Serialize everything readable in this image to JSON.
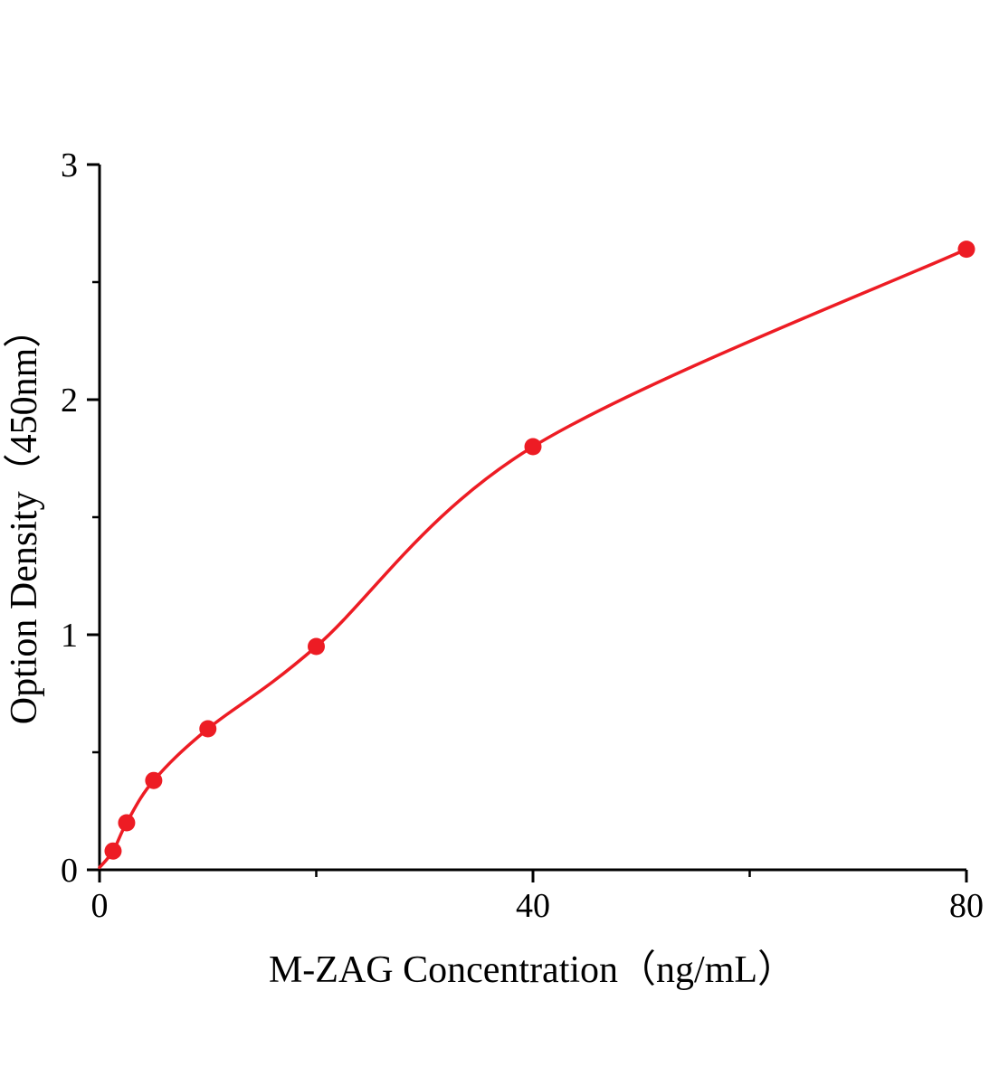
{
  "chart_data": {
    "type": "scatter",
    "title": "",
    "xlabel": "M-ZAG Concentration（ng/mL）",
    "ylabel": "Option Density（450nm）",
    "x": [
      1.25,
      2.5,
      5,
      10,
      20,
      40,
      80
    ],
    "y": [
      0.08,
      0.2,
      0.38,
      0.6,
      0.95,
      1.8,
      2.64
    ],
    "curve_start": [
      0,
      0.01
    ],
    "xlim": [
      0,
      80
    ],
    "ylim": [
      0,
      3
    ],
    "x_major_ticks": [
      0,
      40,
      80
    ],
    "x_minor_ticks": [
      20,
      60
    ],
    "y_major_ticks": [
      0,
      1,
      2,
      3
    ],
    "y_minor_ticks": [
      0.5,
      1.5,
      2.5
    ],
    "grid": false,
    "legend": null,
    "point_color": "#ed1c24",
    "line_color": "#ed1c24",
    "axis_color": "#000000"
  }
}
